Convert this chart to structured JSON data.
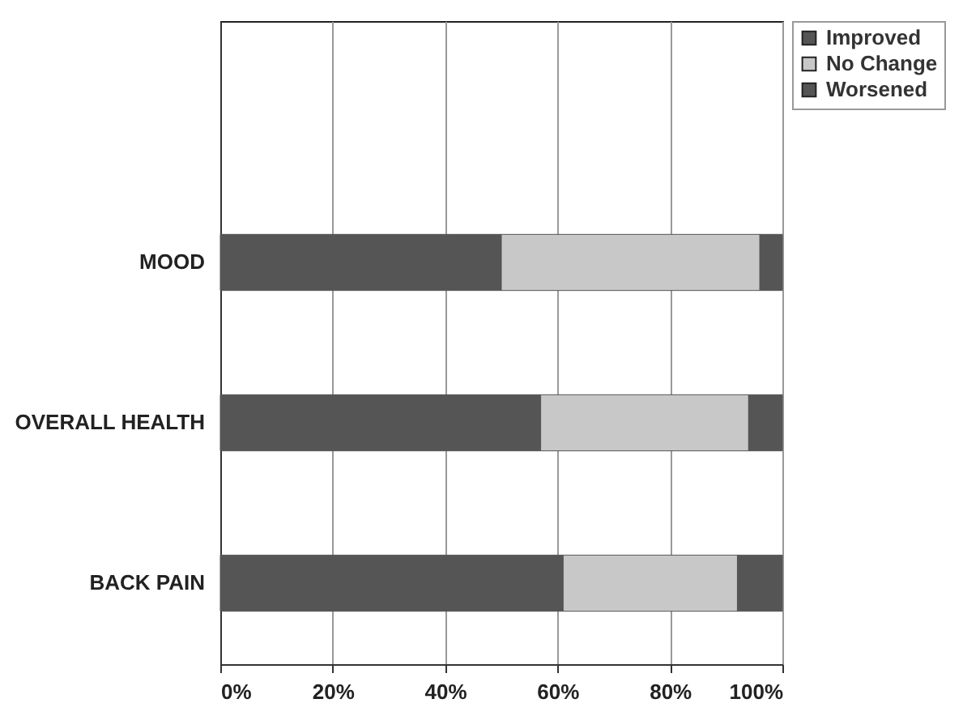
{
  "chart_data": {
    "type": "bar",
    "orientation": "horizontal",
    "stacked": true,
    "categories": [
      null,
      "MOOD",
      "OVERALL HEALTH",
      "BACK PAIN"
    ],
    "series": [
      {
        "name": "Improved",
        "color": "#555555",
        "values": [
          null,
          50,
          57,
          61
        ]
      },
      {
        "name": "No Change",
        "color": "#c8c8c8",
        "values": [
          null,
          46,
          37,
          31
        ]
      },
      {
        "name": "Worsened",
        "color": "#555555",
        "values": [
          null,
          4,
          6,
          8
        ]
      }
    ],
    "xlim": [
      0,
      100
    ],
    "xticks": [
      {
        "value": 0,
        "label": "0%"
      },
      {
        "value": 20,
        "label": "20%"
      },
      {
        "value": 40,
        "label": "40%"
      },
      {
        "value": 60,
        "label": "60%"
      },
      {
        "value": 80,
        "label": "80%"
      },
      {
        "value": 100,
        "label": "100%"
      }
    ],
    "grid": "x",
    "legend": "right"
  }
}
